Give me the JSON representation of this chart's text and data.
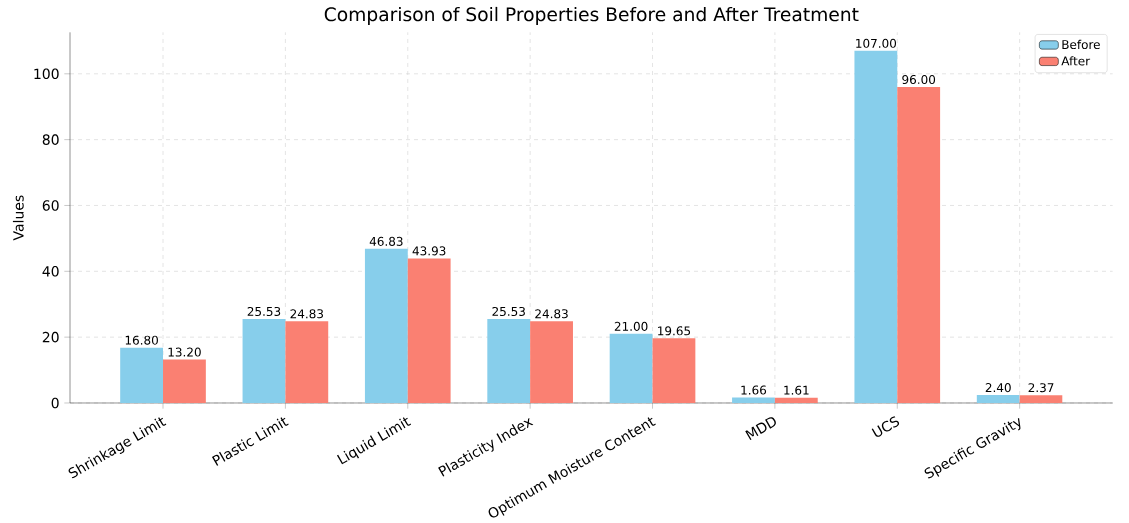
{
  "chart_data": {
    "type": "bar",
    "title": "Comparison of Soil Properties Before and After Treatment",
    "ylabel": "Values",
    "categories": [
      "Shrinkage Limit",
      "Plastic Limit",
      "Liquid Limit",
      "Plasticity Index",
      "Optimum Moisture Content",
      "MDD",
      "UCS",
      "Specific Gravity"
    ],
    "series": [
      {
        "name": "Before",
        "color": "#87ceeb",
        "values": [
          16.8,
          25.53,
          46.83,
          25.53,
          21.0,
          1.66,
          107.0,
          2.4
        ],
        "value_labels": [
          "16.80",
          "25.53",
          "46.83",
          "25.53",
          "21.00",
          "1.66",
          "107.00",
          "2.40"
        ]
      },
      {
        "name": "After",
        "color": "#fa8072",
        "values": [
          13.2,
          24.83,
          43.93,
          24.83,
          19.65,
          1.61,
          96.0,
          2.37
        ],
        "value_labels": [
          "13.20",
          "24.83",
          "43.93",
          "24.83",
          "19.65",
          "1.61",
          "96.00",
          "2.37"
        ]
      }
    ],
    "ylim": [
      0,
      112.6
    ],
    "yticks": [
      0,
      20,
      40,
      60,
      80,
      100
    ],
    "grid": true,
    "legend": "top right"
  }
}
